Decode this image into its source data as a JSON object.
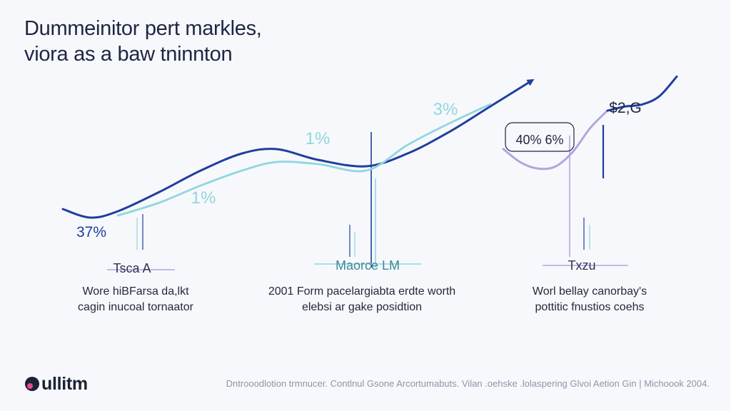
{
  "header": {
    "title_line1": "Dummeinitor pert markles,",
    "title_line2": "viora as a baw tninnton"
  },
  "colors": {
    "navy": "#1f3f9e",
    "teal": "#8fd7e0",
    "lavender": "#b3a4e0",
    "text": "#1d2643"
  },
  "chart_data": {
    "type": "line",
    "title": "",
    "xlabel": "",
    "ylabel": "",
    "ylim": [
      0,
      100
    ],
    "series": [
      {
        "x": [
          0,
          4,
          8,
          14,
          20,
          26,
          31,
          37,
          44,
          50,
          56,
          62,
          68
        ],
        "values": [
          34,
          30,
          33,
          42,
          52,
          60,
          62,
          57,
          54,
          60,
          70,
          82,
          94
        ]
      },
      {
        "x": [
          8,
          14,
          20,
          26,
          31,
          37,
          44,
          50,
          56,
          62
        ],
        "values": [
          31,
          37,
          45,
          52,
          56,
          55,
          52,
          64,
          74,
          83
        ]
      }
    ],
    "annotations": [
      {
        "label": "37%",
        "x": 0,
        "y": 40
      },
      {
        "label": "1%",
        "x": 18,
        "y": 56
      },
      {
        "label": "1%",
        "x": 35,
        "y": 70
      },
      {
        "label": "3%",
        "x": 52,
        "y": 77
      },
      {
        "label": "40% 6%",
        "x": 72,
        "y": 68
      },
      {
        "label": "$2,G",
        "x": 87,
        "y": 78
      }
    ]
  },
  "inset_data": {
    "type": "line",
    "series": [
      {
        "x": [
          0,
          1,
          2,
          3,
          4,
          5,
          6,
          7,
          8,
          9,
          10
        ],
        "values": [
          25,
          12,
          6,
          8,
          22,
          45,
          62,
          66,
          68,
          76,
          95
        ]
      }
    ]
  },
  "sections": [
    {
      "tag": "Tsca A",
      "line1": "Wore hiBFarsa da,lkt",
      "line2": "cagin inucoal tornaator"
    },
    {
      "tag": "Maorce LM",
      "line1": "2001 Form pacelargiabta erdte worth",
      "line2": "elebsi ar gake posidtion"
    },
    {
      "tag": "Txzu",
      "line1": "Worl bellay canorbay's",
      "line2": "pottitic fnustios coehs"
    }
  ],
  "brand": {
    "name": "ullitm",
    "logo_icon": "circle-logo-icon"
  },
  "footer": {
    "text": "Dntrooodlotion trmnucer. Contlnul Gsone Arcortumabuts. Vilan .oehske .lolaspering Glvoi Aetion Gin | Michoook 2004."
  }
}
